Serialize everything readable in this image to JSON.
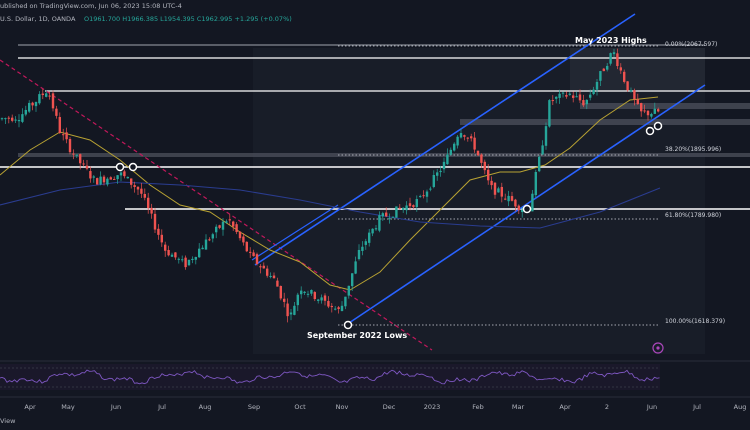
{
  "header": {
    "line1": "ublished on TradingView.com, Jun 06, 2023 15:08 UTC-4",
    "line2_prefix": "U.S. Dollar, 1D, OANDA",
    "ohlc": "O1961.700  H1966.385  L1954.395  C1962.995  +1.295 (+0.07%)"
  },
  "colors": {
    "background": "#131722",
    "up": "#26a69a",
    "down": "#ef5350",
    "channel": "#2962ff",
    "ma_fast": "#b8a233",
    "ma_slow": "#2a3c8f",
    "trend_dashed": "#c2185b",
    "level": "#ffffff",
    "rsi": "#7e57c2"
  },
  "chart_data": {
    "type": "candlestick",
    "symbol": "XAU/USD",
    "timeframe": "1D",
    "source": "OANDA",
    "x_tick_labels": [
      "Apr",
      "May",
      "Jun",
      "Jul",
      "Aug",
      "Sep",
      "Oct",
      "Nov",
      "Dec",
      "2023",
      "Feb",
      "Mar",
      "Apr",
      "2",
      "Jun",
      "Jul",
      "Aug"
    ],
    "annotations": [
      {
        "text": "May 2023 Highs",
        "price": 2067.6
      },
      {
        "text": "September 2022 Lows",
        "price": 1618.4
      }
    ],
    "fibonacci": [
      {
        "ratio": "0.00%",
        "value": "2067.597"
      },
      {
        "ratio": "38.20%",
        "value": "1895.996"
      },
      {
        "ratio": "61.80%",
        "value": "1789.980"
      },
      {
        "ratio": "100.00%",
        "value": "1618.379"
      }
    ],
    "horizontal_levels": [
      2070,
      2000,
      1980,
      1955,
      1935,
      1900,
      1872,
      1785
    ],
    "rsi_panel": true,
    "grid": false
  }
}
